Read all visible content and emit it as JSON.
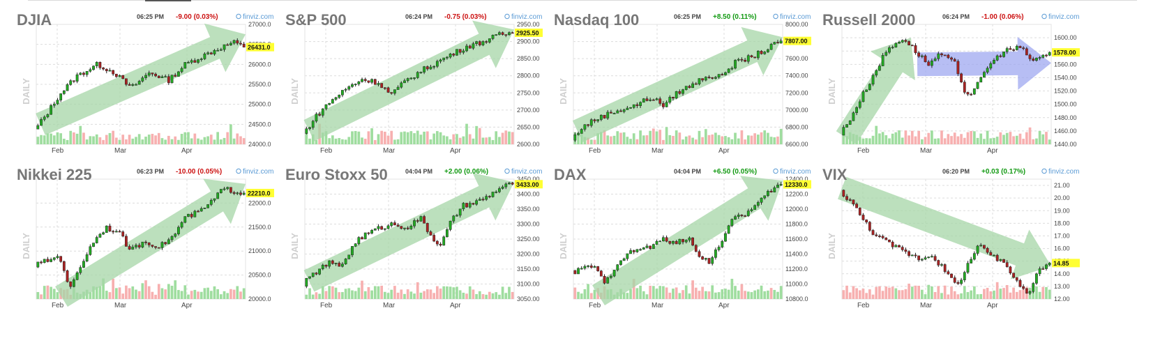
{
  "chart_data": [
    {
      "type": "candlestick",
      "title": "DJIA",
      "time": "06:25 PM",
      "change": "-9.00 (0.03%)",
      "change_direction": "down",
      "source": "finviz.com",
      "period_label": "DAILY",
      "price_label": "26431.0",
      "ylim": [
        24000,
        27000
      ],
      "y_ticks": [
        "27000.0",
        "26500.0",
        "26000.0",
        "25500.0",
        "25000.0",
        "24500.0",
        "24000.0"
      ],
      "y_tick_values": [
        27000,
        26500,
        26000,
        25500,
        25000,
        24500,
        24000
      ],
      "x_ticks": [
        "Feb",
        "Mar",
        "Apr"
      ],
      "x_tick_positions": [
        0.1,
        0.4,
        0.72
      ],
      "trend_color": "#a5d6a7",
      "arrows": [
        {
          "from": [
            0.02,
            24500
          ],
          "to": [
            1.0,
            26750
          ]
        }
      ],
      "path": [
        [
          0,
          24350
        ],
        [
          0.05,
          24700
        ],
        [
          0.12,
          25250
        ],
        [
          0.2,
          25700
        ],
        [
          0.3,
          26000
        ],
        [
          0.38,
          25800
        ],
        [
          0.46,
          25400
        ],
        [
          0.55,
          25800
        ],
        [
          0.64,
          25600
        ],
        [
          0.72,
          26000
        ],
        [
          0.8,
          26200
        ],
        [
          0.88,
          26400
        ],
        [
          0.95,
          26550
        ],
        [
          1.0,
          26431
        ]
      ]
    },
    {
      "type": "candlestick",
      "title": "S&P 500",
      "time": "06:24 PM",
      "change": "-0.75 (0.03%)",
      "change_direction": "down",
      "source": "finviz.com",
      "period_label": "DAILY",
      "price_label": "2925.50",
      "ylim": [
        2600,
        2950
      ],
      "y_ticks": [
        "2950.00",
        "2900.00",
        "2850.00",
        "2800.00",
        "2750.00",
        "2700.00",
        "2650.00",
        "2600.00"
      ],
      "y_tick_values": [
        2950,
        2900,
        2850,
        2800,
        2750,
        2700,
        2650,
        2600
      ],
      "x_ticks": [
        "Feb",
        "Mar",
        "Apr"
      ],
      "x_tick_positions": [
        0.1,
        0.4,
        0.72
      ],
      "trend_color": "#a5d6a7",
      "arrows": [
        {
          "from": [
            0.02,
            2640
          ],
          "to": [
            1.0,
            2935
          ]
        }
      ],
      "path": [
        [
          0,
          2630
        ],
        [
          0.06,
          2680
        ],
        [
          0.12,
          2720
        ],
        [
          0.2,
          2760
        ],
        [
          0.28,
          2790
        ],
        [
          0.36,
          2780
        ],
        [
          0.42,
          2745
        ],
        [
          0.5,
          2790
        ],
        [
          0.58,
          2820
        ],
        [
          0.64,
          2840
        ],
        [
          0.7,
          2860
        ],
        [
          0.78,
          2885
        ],
        [
          0.86,
          2900
        ],
        [
          0.94,
          2920
        ],
        [
          1.0,
          2925.5
        ]
      ]
    },
    {
      "type": "candlestick",
      "title": "Nasdaq 100",
      "time": "06:25 PM",
      "change": "+8.50 (0.11%)",
      "change_direction": "up",
      "source": "finviz.com",
      "period_label": "DAILY",
      "price_label": "7807.00",
      "ylim": [
        6600,
        8000
      ],
      "y_ticks": [
        "8000.00",
        "7800.00",
        "7600.00",
        "7400.00",
        "7200.00",
        "7000.00",
        "6800.00",
        "6600.00"
      ],
      "y_tick_values": [
        8000,
        7800,
        7600,
        7400,
        7200,
        7000,
        6800,
        6600
      ],
      "x_ticks": [
        "Feb",
        "Mar",
        "Apr"
      ],
      "x_tick_positions": [
        0.1,
        0.4,
        0.72
      ],
      "trend_color": "#a5d6a7",
      "arrows": [
        {
          "from": [
            0.02,
            6750
          ],
          "to": [
            1.0,
            7850
          ]
        }
      ],
      "path": [
        [
          0,
          6650
        ],
        [
          0.05,
          6800
        ],
        [
          0.12,
          6900
        ],
        [
          0.2,
          6980
        ],
        [
          0.3,
          7050
        ],
        [
          0.38,
          7150
        ],
        [
          0.44,
          7050
        ],
        [
          0.5,
          7200
        ],
        [
          0.58,
          7300
        ],
        [
          0.64,
          7400
        ],
        [
          0.7,
          7380
        ],
        [
          0.78,
          7550
        ],
        [
          0.86,
          7620
        ],
        [
          0.94,
          7720
        ],
        [
          1.0,
          7807
        ]
      ]
    },
    {
      "type": "candlestick",
      "title": "Russell 2000",
      "time": "06:24 PM",
      "change": "-1.00 (0.06%)",
      "change_direction": "down",
      "source": "finviz.com",
      "period_label": "DAILY",
      "price_label": "1578.00",
      "ylim": [
        1440,
        1620
      ],
      "y_ticks": [
        "1600.00",
        "1580.00",
        "1560.00",
        "1540.00",
        "1520.00",
        "1500.00",
        "1480.00",
        "1460.00",
        "1440.00"
      ],
      "y_tick_values": [
        1600,
        1580,
        1560,
        1540,
        1520,
        1500,
        1480,
        1460,
        1440
      ],
      "x_ticks": [
        "Feb",
        "Mar",
        "Apr"
      ],
      "x_tick_positions": [
        0.1,
        0.4,
        0.72
      ],
      "trend_color": "#a5d6a7",
      "consolidation_color": "#9fa8f0",
      "arrows": [
        {
          "from": [
            0.02,
            1450
          ],
          "to": [
            0.33,
            1600
          ]
        }
      ],
      "consolidation_arrow": {
        "from": [
          0.36,
          1560
        ],
        "to": [
          1.0,
          1562
        ]
      },
      "path": [
        [
          0,
          1455
        ],
        [
          0.05,
          1480
        ],
        [
          0.1,
          1510
        ],
        [
          0.16,
          1545
        ],
        [
          0.22,
          1580
        ],
        [
          0.3,
          1600
        ],
        [
          0.36,
          1580
        ],
        [
          0.42,
          1560
        ],
        [
          0.48,
          1575
        ],
        [
          0.55,
          1560
        ],
        [
          0.6,
          1515
        ],
        [
          0.64,
          1520
        ],
        [
          0.7,
          1555
        ],
        [
          0.78,
          1580
        ],
        [
          0.86,
          1585
        ],
        [
          0.92,
          1565
        ],
        [
          1.0,
          1578
        ]
      ]
    },
    {
      "type": "candlestick",
      "title": "Nikkei 225",
      "time": "06:23 PM",
      "change": "-10.00 (0.05%)",
      "change_direction": "down",
      "source": "finviz.com",
      "period_label": "DAILY",
      "price_label": "22210.0",
      "ylim": [
        20000,
        22500
      ],
      "y_ticks": [
        "22000.0",
        "21500.0",
        "21000.0",
        "20500.0",
        "20000.0"
      ],
      "y_tick_values": [
        22000,
        21500,
        21000,
        20500,
        20000
      ],
      "x_ticks": [
        "Feb",
        "Mar",
        "Apr"
      ],
      "x_tick_positions": [
        0.1,
        0.4,
        0.72
      ],
      "trend_color": "#a5d6a7",
      "arrows": [
        {
          "from": [
            0.12,
            20050
          ],
          "to": [
            1.0,
            22400
          ]
        }
      ],
      "path": [
        [
          0,
          20700
        ],
        [
          0.06,
          20800
        ],
        [
          0.12,
          20900
        ],
        [
          0.17,
          20200
        ],
        [
          0.22,
          20700
        ],
        [
          0.28,
          21200
        ],
        [
          0.34,
          21500
        ],
        [
          0.4,
          21400
        ],
        [
          0.46,
          21000
        ],
        [
          0.52,
          21200
        ],
        [
          0.6,
          21100
        ],
        [
          0.66,
          21300
        ],
        [
          0.72,
          21700
        ],
        [
          0.78,
          21800
        ],
        [
          0.84,
          22000
        ],
        [
          0.9,
          22300
        ],
        [
          1.0,
          22210
        ]
      ]
    },
    {
      "type": "candlestick",
      "title": "Euro Stoxx 50",
      "time": "04:04 PM",
      "change": "+2.00 (0.06%)",
      "change_direction": "up",
      "source": "finviz.com",
      "period_label": "DAILY",
      "price_label": "3433.00",
      "ylim": [
        3050,
        3450
      ],
      "y_ticks": [
        "3450.00",
        "3400.00",
        "3350.00",
        "3300.00",
        "3250.00",
        "3200.00",
        "3150.00",
        "3100.00",
        "3050.00"
      ],
      "y_tick_values": [
        3450,
        3400,
        3350,
        3300,
        3250,
        3200,
        3150,
        3100,
        3050
      ],
      "x_ticks": [
        "Feb",
        "Mar",
        "Apr"
      ],
      "x_tick_positions": [
        0.1,
        0.4,
        0.72
      ],
      "trend_color": "#a5d6a7",
      "arrows": [
        {
          "from": [
            0.02,
            3110
          ],
          "to": [
            1.0,
            3440
          ]
        }
      ],
      "path": [
        [
          0,
          3100
        ],
        [
          0.06,
          3140
        ],
        [
          0.12,
          3170
        ],
        [
          0.18,
          3160
        ],
        [
          0.26,
          3250
        ],
        [
          0.34,
          3280
        ],
        [
          0.42,
          3300
        ],
        [
          0.5,
          3290
        ],
        [
          0.56,
          3320
        ],
        [
          0.62,
          3250
        ],
        [
          0.66,
          3230
        ],
        [
          0.7,
          3300
        ],
        [
          0.76,
          3360
        ],
        [
          0.82,
          3370
        ],
        [
          0.88,
          3390
        ],
        [
          0.94,
          3420
        ],
        [
          1.0,
          3433
        ]
      ]
    },
    {
      "type": "candlestick",
      "title": "DAX",
      "time": "04:04 PM",
      "change": "+6.50 (0.05%)",
      "change_direction": "up",
      "source": "finviz.com",
      "period_label": "DAILY",
      "price_label": "12330.0",
      "ylim": [
        10800,
        12400
      ],
      "y_ticks": [
        "12400.0",
        "12200.0",
        "12000.0",
        "11800.0",
        "11600.0",
        "11400.0",
        "11200.0",
        "11000.0",
        "10800.0"
      ],
      "y_tick_values": [
        12400,
        12200,
        12000,
        11800,
        11600,
        11400,
        11200,
        11000,
        10800
      ],
      "x_ticks": [
        "Feb",
        "Mar",
        "Apr"
      ],
      "x_tick_positions": [
        0.1,
        0.4,
        0.72
      ],
      "trend_color": "#a5d6a7",
      "arrows": [
        {
          "from": [
            0.12,
            10850
          ],
          "to": [
            1.0,
            12380
          ]
        }
      ],
      "path": [
        [
          0,
          11150
        ],
        [
          0.05,
          11200
        ],
        [
          0.1,
          11250
        ],
        [
          0.16,
          11000
        ],
        [
          0.22,
          11300
        ],
        [
          0.3,
          11450
        ],
        [
          0.38,
          11500
        ],
        [
          0.44,
          11600
        ],
        [
          0.5,
          11550
        ],
        [
          0.56,
          11600
        ],
        [
          0.62,
          11350
        ],
        [
          0.66,
          11300
        ],
        [
          0.72,
          11600
        ],
        [
          0.78,
          11900
        ],
        [
          0.84,
          11950
        ],
        [
          0.9,
          12100
        ],
        [
          0.95,
          12250
        ],
        [
          1.0,
          12330
        ]
      ]
    },
    {
      "type": "candlestick",
      "title": "VIX",
      "time": "06:20 PM",
      "change": "+0.03 (0.17%)",
      "change_direction": "up",
      "source": "finviz.com",
      "period_label": "DAILY",
      "price_label": "14.85",
      "ylim": [
        12,
        21.5
      ],
      "y_ticks": [
        "21.00",
        "20.00",
        "19.00",
        "18.00",
        "17.00",
        "16.00",
        "15.00",
        "14.00",
        "13.00",
        "12.00"
      ],
      "y_tick_values": [
        21,
        20,
        19,
        18,
        17,
        16,
        15,
        14,
        13,
        12
      ],
      "x_ticks": [
        "Feb",
        "Mar",
        "Apr"
      ],
      "x_tick_positions": [
        0.1,
        0.4,
        0.72
      ],
      "trend_color": "#a5d6a7",
      "arrows": [
        {
          "from": [
            0.0,
            20.8
          ],
          "to": [
            1.0,
            14.6
          ]
        }
      ],
      "path": [
        [
          0,
          20.5
        ],
        [
          0.05,
          19.8
        ],
        [
          0.1,
          18.5
        ],
        [
          0.16,
          17.2
        ],
        [
          0.22,
          16.5
        ],
        [
          0.3,
          15.8
        ],
        [
          0.38,
          15.2
        ],
        [
          0.44,
          15.5
        ],
        [
          0.5,
          14.2
        ],
        [
          0.56,
          13.0
        ],
        [
          0.6,
          14.5
        ],
        [
          0.66,
          16.2
        ],
        [
          0.72,
          15.5
        ],
        [
          0.8,
          14.5
        ],
        [
          0.86,
          13.0
        ],
        [
          0.9,
          12.5
        ],
        [
          0.94,
          14.2
        ],
        [
          1.0,
          14.85
        ]
      ]
    }
  ],
  "colors": {
    "up_candle": "#22aa22",
    "down_candle": "#aa2222",
    "volume_up": "#9fdd9f",
    "volume_down": "#f7b0b0",
    "grid": "#dcdcdc",
    "title": "#777777",
    "change_down": "#cc1111",
    "change_up": "#119911",
    "source_link": "#5b9bd5",
    "price_label_bg": "#ffff33"
  }
}
